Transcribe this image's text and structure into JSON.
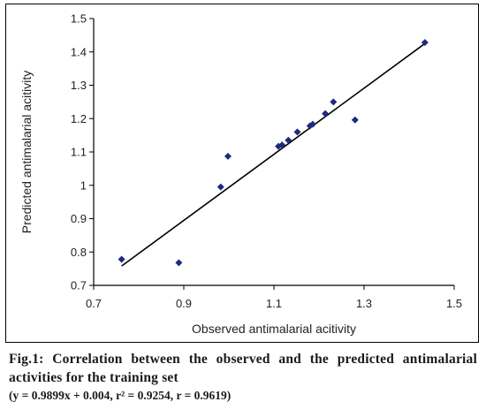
{
  "chart_data": {
    "type": "scatter",
    "xlabel": "Observed antimalarial acitivity",
    "ylabel": "Predicted antimalarial acitivity",
    "xlim": [
      0.7,
      1.5
    ],
    "ylim": [
      0.7,
      1.5
    ],
    "x_ticks": [
      "0.7",
      "0.9",
      "1.1",
      "1.3",
      "1.5"
    ],
    "y_ticks": [
      "0.7",
      "0.8",
      "0.9",
      "1",
      "1.1",
      "1.2",
      "1.3",
      "1.4",
      "1.5"
    ],
    "grid": false,
    "legend": "none",
    "marker": "diamond",
    "marker_color": "#1f2a7a",
    "points": [
      {
        "x": 0.762,
        "y": 0.778
      },
      {
        "x": 0.889,
        "y": 0.768
      },
      {
        "x": 0.982,
        "y": 0.995
      },
      {
        "x": 0.998,
        "y": 1.087
      },
      {
        "x": 1.11,
        "y": 1.117
      },
      {
        "x": 1.118,
        "y": 1.121
      },
      {
        "x": 1.132,
        "y": 1.135
      },
      {
        "x": 1.152,
        "y": 1.16
      },
      {
        "x": 1.18,
        "y": 1.178
      },
      {
        "x": 1.186,
        "y": 1.183
      },
      {
        "x": 1.214,
        "y": 1.215
      },
      {
        "x": 1.232,
        "y": 1.25
      },
      {
        "x": 1.28,
        "y": 1.196
      },
      {
        "x": 1.435,
        "y": 1.428
      }
    ],
    "trendline": {
      "x": [
        0.762,
        1.435
      ],
      "y": [
        0.758,
        1.425
      ],
      "color": "#000000"
    }
  },
  "caption": {
    "title": "Fig.1: Correlation between the observed and the predicted antimalarial activities for the training set",
    "equation": "(y = 0.9899x + 0.004, r² = 0.9254, r = 0.9619)"
  }
}
